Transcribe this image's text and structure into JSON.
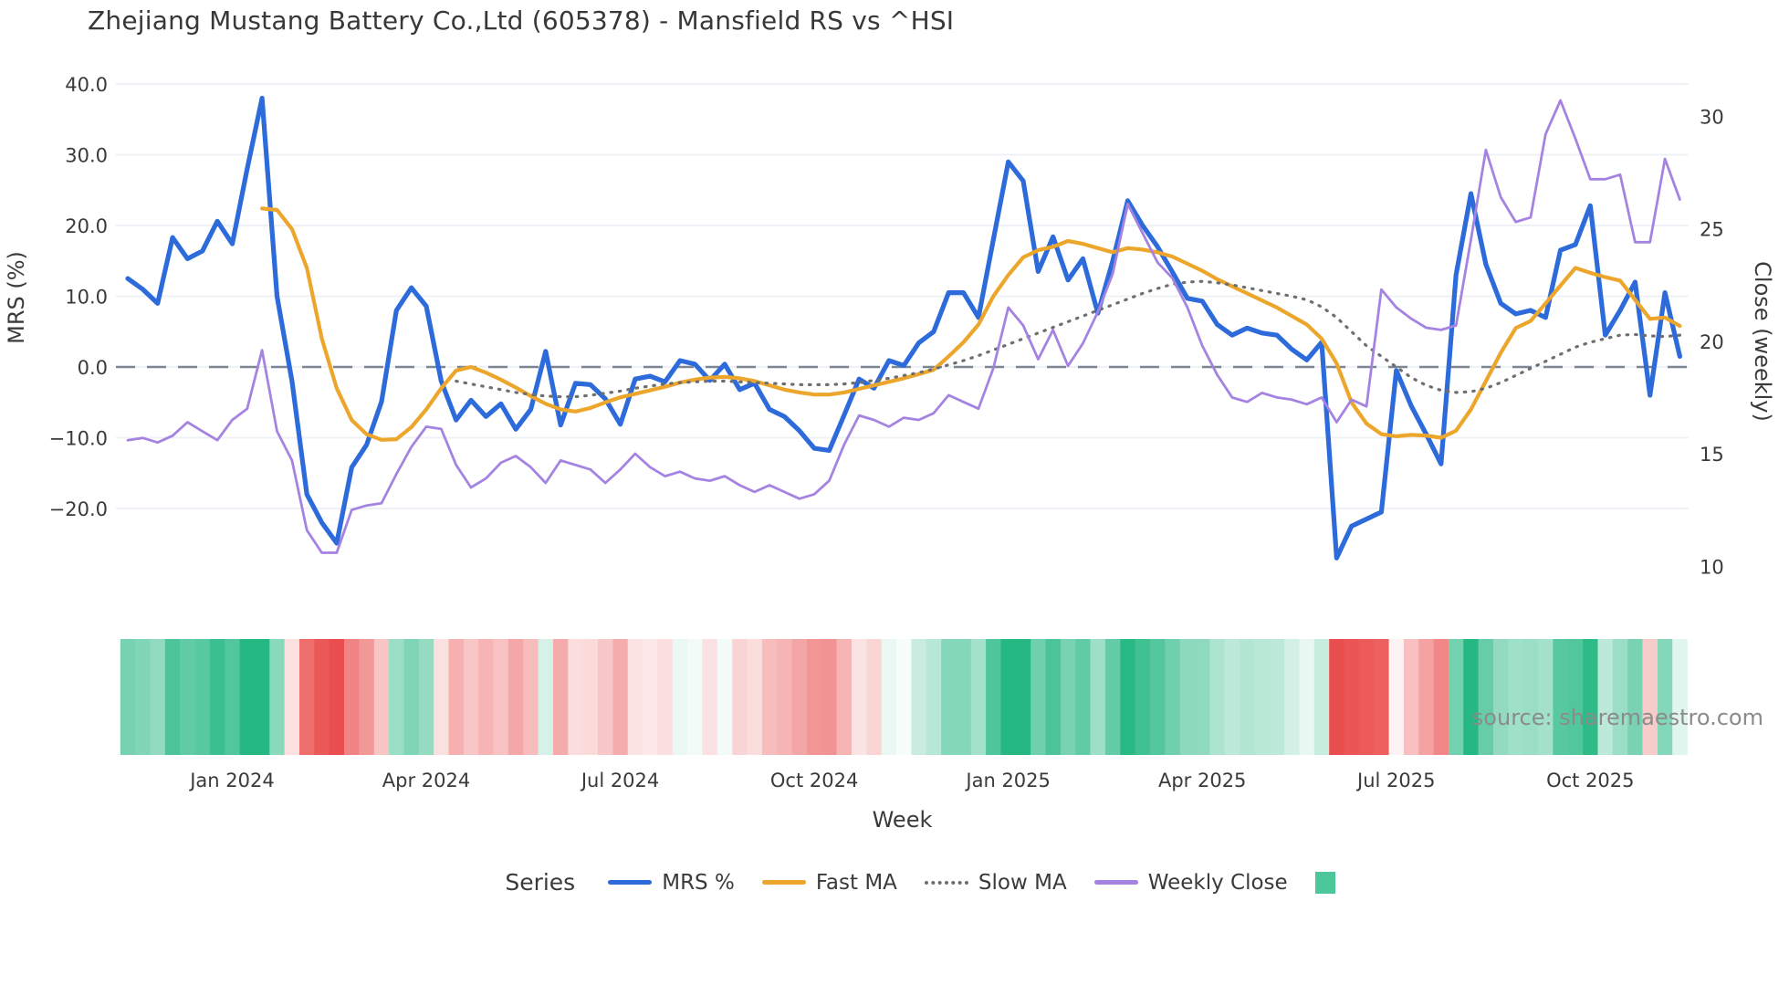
{
  "title": "Zhejiang Mustang Battery Co.,Ltd (605378) - Mansfield RS vs ^HSI",
  "source_note": "source: sharemaestro.com",
  "axes": {
    "left": {
      "label": "MRS (%)",
      "ticks": [
        "40.0",
        "30.0",
        "20.0",
        "10.0",
        "0.0",
        "−10.0",
        "−20.0"
      ],
      "tick_values": [
        40,
        30,
        20,
        10,
        0,
        -10,
        -20
      ]
    },
    "right": {
      "label": "Close (weekly)",
      "ticks": [
        "30",
        "25",
        "20",
        "15",
        "10"
      ],
      "tick_values": [
        30,
        25,
        20,
        15,
        10
      ]
    },
    "x": {
      "label": "Week",
      "tick_labels": [
        "Jan 2024",
        "Apr 2024",
        "Jul 2024",
        "Oct 2024",
        "Jan 2025",
        "Apr 2025",
        "Jul 2025",
        "Oct 2025"
      ],
      "tick_weeks": [
        7,
        20,
        33,
        46,
        59,
        72,
        85,
        98
      ]
    }
  },
  "legend": {
    "title": "Series",
    "items": [
      {
        "label": "MRS %",
        "color": "#2d6bdb",
        "style": "line"
      },
      {
        "label": "Fast MA",
        "color": "#eda62c",
        "style": "line"
      },
      {
        "label": "Slow MA",
        "color": "#6f6f6f",
        "style": "dotted"
      },
      {
        "label": "Weekly Close",
        "color": "#a583e1",
        "style": "line"
      },
      {
        "label": "",
        "color": "#4cc79a",
        "style": "square"
      }
    ]
  },
  "chart_data": {
    "type": "line",
    "x_unit": "week_index",
    "weeks": 105,
    "x_range_note": "~105 weekly points, Nov 2023 - Nov 2025",
    "ylim_left": [
      -35,
      43.5
    ],
    "ylim_right": [
      8.4,
      32.5
    ],
    "grid": "horizontal-only",
    "zero_line": {
      "value": 0,
      "style": "dashed",
      "color": "#7b8694"
    },
    "series": [
      {
        "name": "MRS %",
        "axis": "left",
        "color": "#2d6bdb",
        "width": 5.2,
        "dash": "solid",
        "values": [
          12.5,
          11,
          9,
          18.3,
          15.3,
          16.4,
          20.6,
          17.4,
          28,
          38,
          10,
          -2,
          -18,
          -22,
          -24.9,
          -14.2,
          -11,
          -4.9,
          8,
          11.2,
          8.6,
          -2,
          -7.5,
          -4.7,
          -7,
          -5.2,
          -8.8,
          -6,
          2.2,
          -8.2,
          -2.3,
          -2.5,
          -4.5,
          -8.1,
          -1.7,
          -1.3,
          -2.1,
          0.9,
          0.4,
          -1.9,
          0.4,
          -3.2,
          -2.3,
          -6,
          -7,
          -9,
          -11.5,
          -11.8,
          -6.8,
          -1.7,
          -3,
          0.9,
          0.2,
          3.4,
          5,
          10.5,
          10.5,
          7,
          18,
          29,
          26.3,
          13.5,
          18.4,
          12.3,
          15.3,
          7.6,
          15,
          23.5,
          20,
          17,
          13.4,
          9.7,
          9.3,
          6,
          4.5,
          5.5,
          4.8,
          4.5,
          2.5,
          1,
          3.5,
          -27,
          -22.5,
          -21.5,
          -20.5,
          -0.5,
          -5.5,
          -9.5,
          -13.7,
          13,
          24.5,
          14.5,
          9,
          7.5,
          8,
          7,
          16.5,
          17.3,
          22.8,
          4.5,
          8,
          12,
          -4,
          10.5,
          1.5
        ]
      },
      {
        "name": "Fast MA",
        "axis": "left",
        "color": "#eda62c",
        "width": 4.2,
        "dash": "solid",
        "values": [
          null,
          null,
          null,
          null,
          null,
          null,
          null,
          null,
          null,
          22.4,
          22.2,
          19.5,
          14,
          4,
          -3,
          -7.5,
          -9.5,
          -10.3,
          -10.2,
          -8.5,
          -6,
          -3,
          -0.5,
          0,
          -0.8,
          -1.8,
          -2.9,
          -4.1,
          -5.2,
          -6,
          -6.3,
          -5.8,
          -5,
          -4.3,
          -3.8,
          -3.3,
          -2.8,
          -2.2,
          -1.8,
          -1.5,
          -1.4,
          -1.6,
          -2,
          -2.6,
          -3.2,
          -3.6,
          -3.9,
          -3.9,
          -3.6,
          -3.1,
          -2.6,
          -2.1,
          -1.6,
          -1,
          -0.4,
          1.5,
          3.5,
          6,
          10,
          13,
          15.5,
          16.5,
          17,
          17.8,
          17.4,
          16.8,
          16.2,
          16.8,
          16.6,
          16.2,
          15.6,
          14.6,
          13.6,
          12.4,
          11.4,
          10.4,
          9.4,
          8.4,
          7.2,
          6,
          4,
          0.5,
          -5,
          -8,
          -9.5,
          -9.8,
          -9.6,
          -9.7,
          -10,
          -9,
          -6,
          -2,
          2,
          5.5,
          6.5,
          9,
          11.5,
          14,
          13.3,
          12.7,
          12.2,
          9.5,
          6.8,
          7,
          5.8
        ]
      },
      {
        "name": "Slow MA",
        "axis": "left",
        "color": "#6f6f6f",
        "width": 3.2,
        "dash": "dotted",
        "values": [
          null,
          null,
          null,
          null,
          null,
          null,
          null,
          null,
          null,
          null,
          null,
          null,
          null,
          null,
          null,
          null,
          null,
          null,
          null,
          null,
          null,
          null,
          -2,
          -2.4,
          -2.8,
          -3.2,
          -3.6,
          -3.9,
          -4.1,
          -4.2,
          -4.2,
          -4,
          -3.7,
          -3.4,
          -3,
          -2.7,
          -2.4,
          -2.2,
          -2.1,
          -2,
          -2,
          -2.1,
          -2.2,
          -2.3,
          -2.4,
          -2.5,
          -2.5,
          -2.5,
          -2.4,
          -2.2,
          -1.9,
          -1.6,
          -1.2,
          -0.8,
          -0.3,
          0.3,
          0.9,
          1.6,
          2.4,
          3.2,
          4,
          4.8,
          5.6,
          6.4,
          7.2,
          8,
          8.8,
          9.6,
          10.4,
          11.1,
          11.7,
          12,
          12.1,
          11.9,
          11.6,
          11.2,
          10.8,
          10.4,
          10,
          9.5,
          8.5,
          7,
          5,
          3,
          1.5,
          0,
          -1.5,
          -2.6,
          -3.3,
          -3.6,
          -3.5,
          -3,
          -2.2,
          -1.2,
          -0.2,
          0.8,
          1.8,
          2.8,
          3.5,
          4,
          4.5,
          4.6,
          4.4,
          4.3,
          4.5
        ]
      },
      {
        "name": "Weekly Close",
        "axis": "right",
        "color": "#a583e1",
        "width": 2.8,
        "dash": "solid",
        "values": [
          15.6,
          15.7,
          15.5,
          15.8,
          16.4,
          16,
          15.6,
          16.5,
          17,
          19.6,
          16,
          14.7,
          11.6,
          10.6,
          10.6,
          12.5,
          12.7,
          12.8,
          14.1,
          15.3,
          16.2,
          16.1,
          14.5,
          13.5,
          13.9,
          14.6,
          14.9,
          14.4,
          13.7,
          14.7,
          14.5,
          14.3,
          13.7,
          14.3,
          15,
          14.4,
          14,
          14.2,
          13.9,
          13.8,
          14,
          13.6,
          13.3,
          13.6,
          13.3,
          13,
          13.2,
          13.8,
          15.4,
          16.7,
          16.5,
          16.2,
          16.6,
          16.5,
          16.8,
          17.6,
          17.3,
          17,
          18.8,
          21.5,
          20.7,
          19.2,
          20.5,
          18.9,
          19.9,
          21.3,
          23,
          26.1,
          24.8,
          23.5,
          22.8,
          21.5,
          19.8,
          18.5,
          17.5,
          17.3,
          17.7,
          17.5,
          17.4,
          17.2,
          17.5,
          16.4,
          17.4,
          17.1,
          22.3,
          21.5,
          21,
          20.6,
          20.5,
          20.7,
          24.5,
          28.5,
          26.4,
          25.3,
          25.5,
          29.2,
          30.7,
          29,
          27.2,
          27.2,
          27.4,
          24.4,
          24.4,
          28.1,
          26.3
        ]
      }
    ],
    "heatmap": {
      "description": "weekly strip below plot, color derived from MRS % value",
      "from_series": "MRS %",
      "positive_color": "#26b883",
      "negative_color": "#ea4d4d",
      "neutral_color": "#ffffff",
      "max_abs": 24
    }
  }
}
